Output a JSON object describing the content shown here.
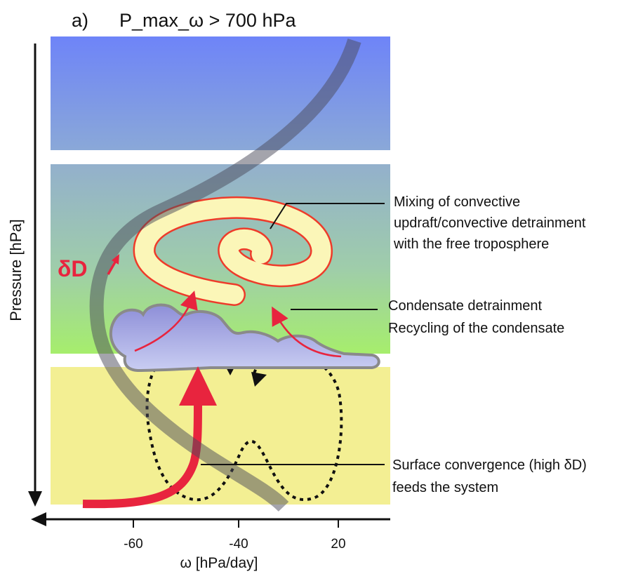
{
  "panel": {
    "label": "a)",
    "title": "P_max_ω  > 700 hPa"
  },
  "axes": {
    "y_label": "Pressure [hPa]",
    "x_label": "ω [hPa/day]",
    "x_ticks": [
      "-60",
      "-40",
      "20"
    ]
  },
  "delta_d": {
    "text": "δD",
    "arrow": "up-arrow"
  },
  "annotations": {
    "mixing": [
      "Mixing of convective",
      "updraft/convective detrainment",
      "with the free troposphere"
    ],
    "condensate": [
      "Condensate detrainment",
      "Recycling of the condensate"
    ],
    "surface": [
      "Surface convergence (high δD)",
      "feeds the system"
    ]
  },
  "colors": {
    "upper_top": "#6e84f8",
    "upper_bottom": "#8aa8d8",
    "mid_top": "#93b0cc",
    "mid_bottom": "#a6ee6c",
    "boundary_layer": "#f3ef93",
    "accent_red": "#e8243e",
    "cloud": "#9aa0de",
    "swirl_fill": "#fbf6b8"
  }
}
